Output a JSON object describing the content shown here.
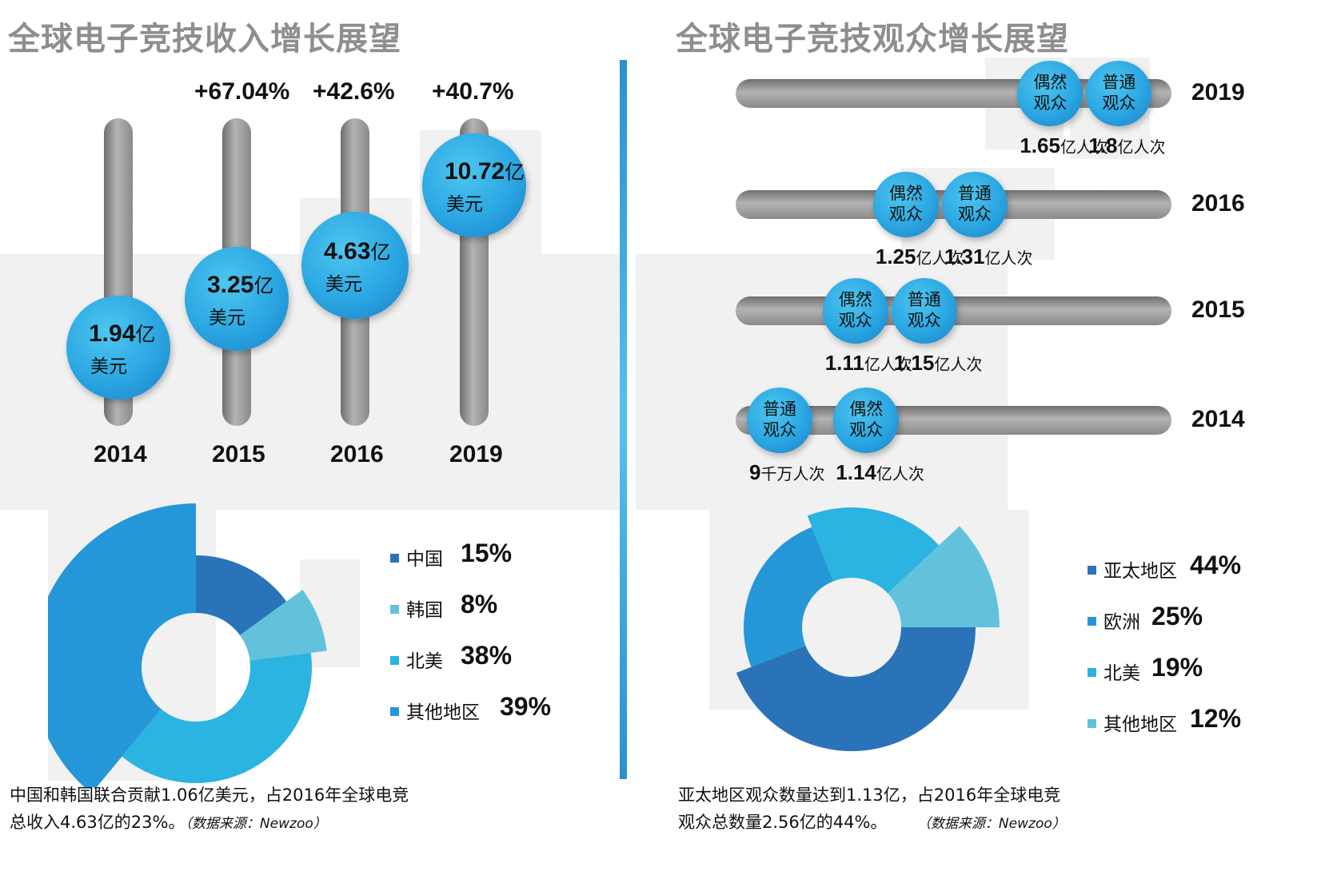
{
  "chart_data": [
    {
      "type": "bar",
      "title": "全球电子竞技收入增长展望",
      "unit": "亿美元",
      "categories": [
        "2014",
        "2015",
        "2016",
        "2019"
      ],
      "values": [
        1.94,
        3.25,
        4.63,
        10.72
      ],
      "value_labels": [
        "1.94",
        "3.25",
        "4.63",
        "10.72"
      ],
      "unit_main": "亿",
      "unit_sub": "美元",
      "growth_labels": [
        "",
        "+67.04%",
        "+42.6%",
        "+40.7%"
      ]
    },
    {
      "type": "bar",
      "title": "全球电子竞技观众增长展望",
      "unit_suffix": "人次",
      "categories": [
        "2019",
        "2016",
        "2015",
        "2014"
      ],
      "series": [
        {
          "name": "偶然观众",
          "values": [
            1.65,
            1.25,
            1.11,
            1.14
          ],
          "display": [
            "1.65",
            "1.25",
            "1.11",
            "1.14"
          ],
          "unit": [
            "亿人次",
            "亿人次",
            "亿人次",
            "亿人次"
          ]
        },
        {
          "name": "普通观众",
          "values": [
            1.8,
            1.31,
            1.15,
            0.9
          ],
          "display": [
            "1.8",
            "1.31",
            "1.15",
            "9"
          ],
          "unit": [
            "亿人次",
            "亿人次",
            "亿人次",
            "千万人次"
          ]
        }
      ]
    },
    {
      "type": "pie",
      "labels": [
        "中国",
        "韩国",
        "北美",
        "其他地区"
      ],
      "values": [
        15,
        8,
        38,
        39
      ],
      "display": [
        "15%",
        "8%",
        "38%",
        "39%"
      ],
      "colors": [
        "#2b73b8",
        "#62c2dc",
        "#2bb3e1",
        "#2597d8"
      ]
    },
    {
      "type": "pie",
      "labels": [
        "亚太地区",
        "欧洲",
        "北美",
        "其他地区"
      ],
      "values": [
        44,
        25,
        19,
        12
      ],
      "display": [
        "44%",
        "25%",
        "19%",
        "12%"
      ],
      "colors": [
        "#2b73b8",
        "#2597d8",
        "#2bb3e1",
        "#62c2dc"
      ]
    }
  ],
  "notes": {
    "left_line1": "中国和韩国联合贡献1.06亿美元，占2016年全球电竞",
    "left_line2": "总收入4.63亿的23%。",
    "right_line1": "亚太地区观众数量达到1.13亿，占2016年全球电竞",
    "right_line2": "观众总数量2.56亿的44%。",
    "source": "（数据来源：Newzoo）"
  }
}
